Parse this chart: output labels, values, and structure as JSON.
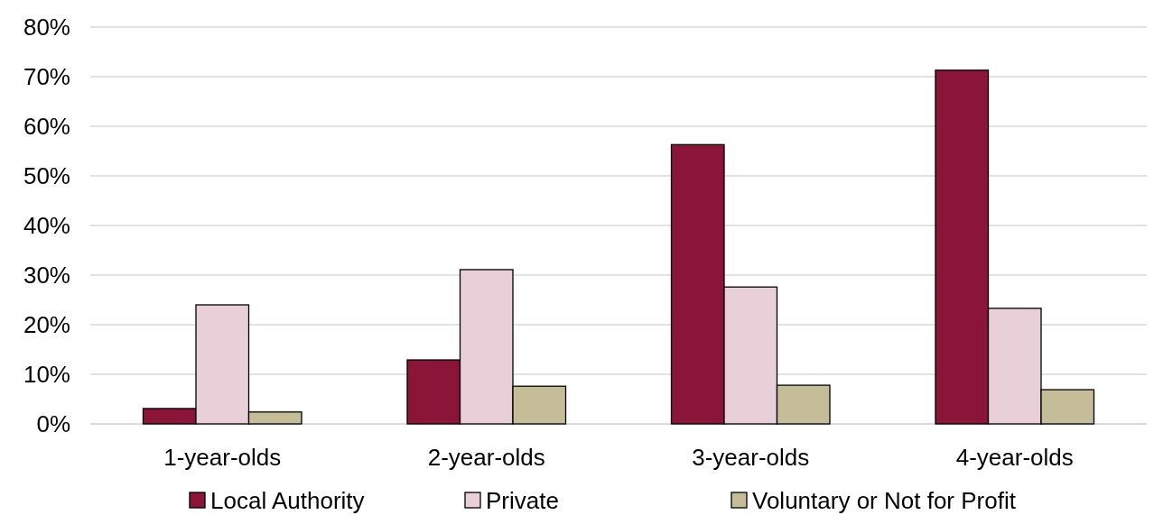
{
  "chart_data": {
    "type": "bar",
    "categories": [
      "1-year-olds",
      "2-year-olds",
      "3-year-olds",
      "4-year-olds"
    ],
    "series": [
      {
        "name": "Local Authority",
        "color": "#8b1538",
        "values": [
          3.1,
          12.9,
          56.3,
          71.3
        ]
      },
      {
        "name": "Private",
        "color": "#e8cfd8",
        "values": [
          24,
          31.1,
          27.6,
          23.3
        ]
      },
      {
        "name": "Voluntary or Not for Profit",
        "color": "#c4bd97",
        "values": [
          2.4,
          7.6,
          7.8,
          6.9
        ]
      }
    ],
    "ylim": [
      0,
      80
    ],
    "yticks": [
      {
        "value": 0,
        "label": "0%"
      },
      {
        "value": 10,
        "label": "10%"
      },
      {
        "value": 20,
        "label": "20%"
      },
      {
        "value": 30,
        "label": "30%"
      },
      {
        "value": 40,
        "label": "40%"
      },
      {
        "value": 50,
        "label": "50%"
      },
      {
        "value": 60,
        "label": "60%"
      },
      {
        "value": 70,
        "label": "70%"
      },
      {
        "value": 80,
        "label": "80%"
      }
    ],
    "grid": "y",
    "legend": "bottom"
  }
}
